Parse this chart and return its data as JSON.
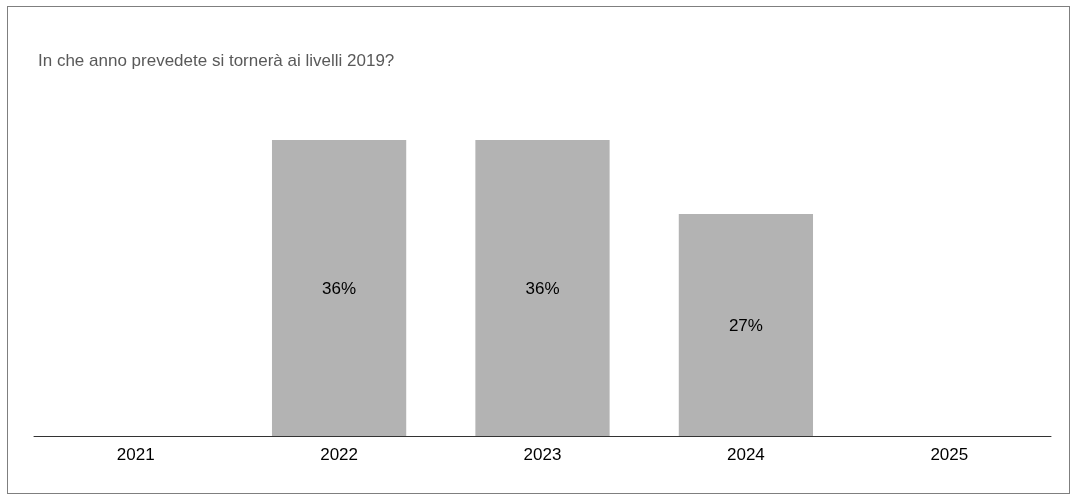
{
  "chart_data": {
    "type": "bar",
    "title": "In che anno prevedete si tornerà ai livelli 2019?",
    "categories": [
      "2021",
      "2022",
      "2023",
      "2024",
      "2025"
    ],
    "values": [
      null,
      36,
      36,
      27,
      null
    ],
    "value_labels": [
      null,
      "36%",
      "36%",
      "27%",
      null
    ],
    "color": "#b3b3b3"
  }
}
